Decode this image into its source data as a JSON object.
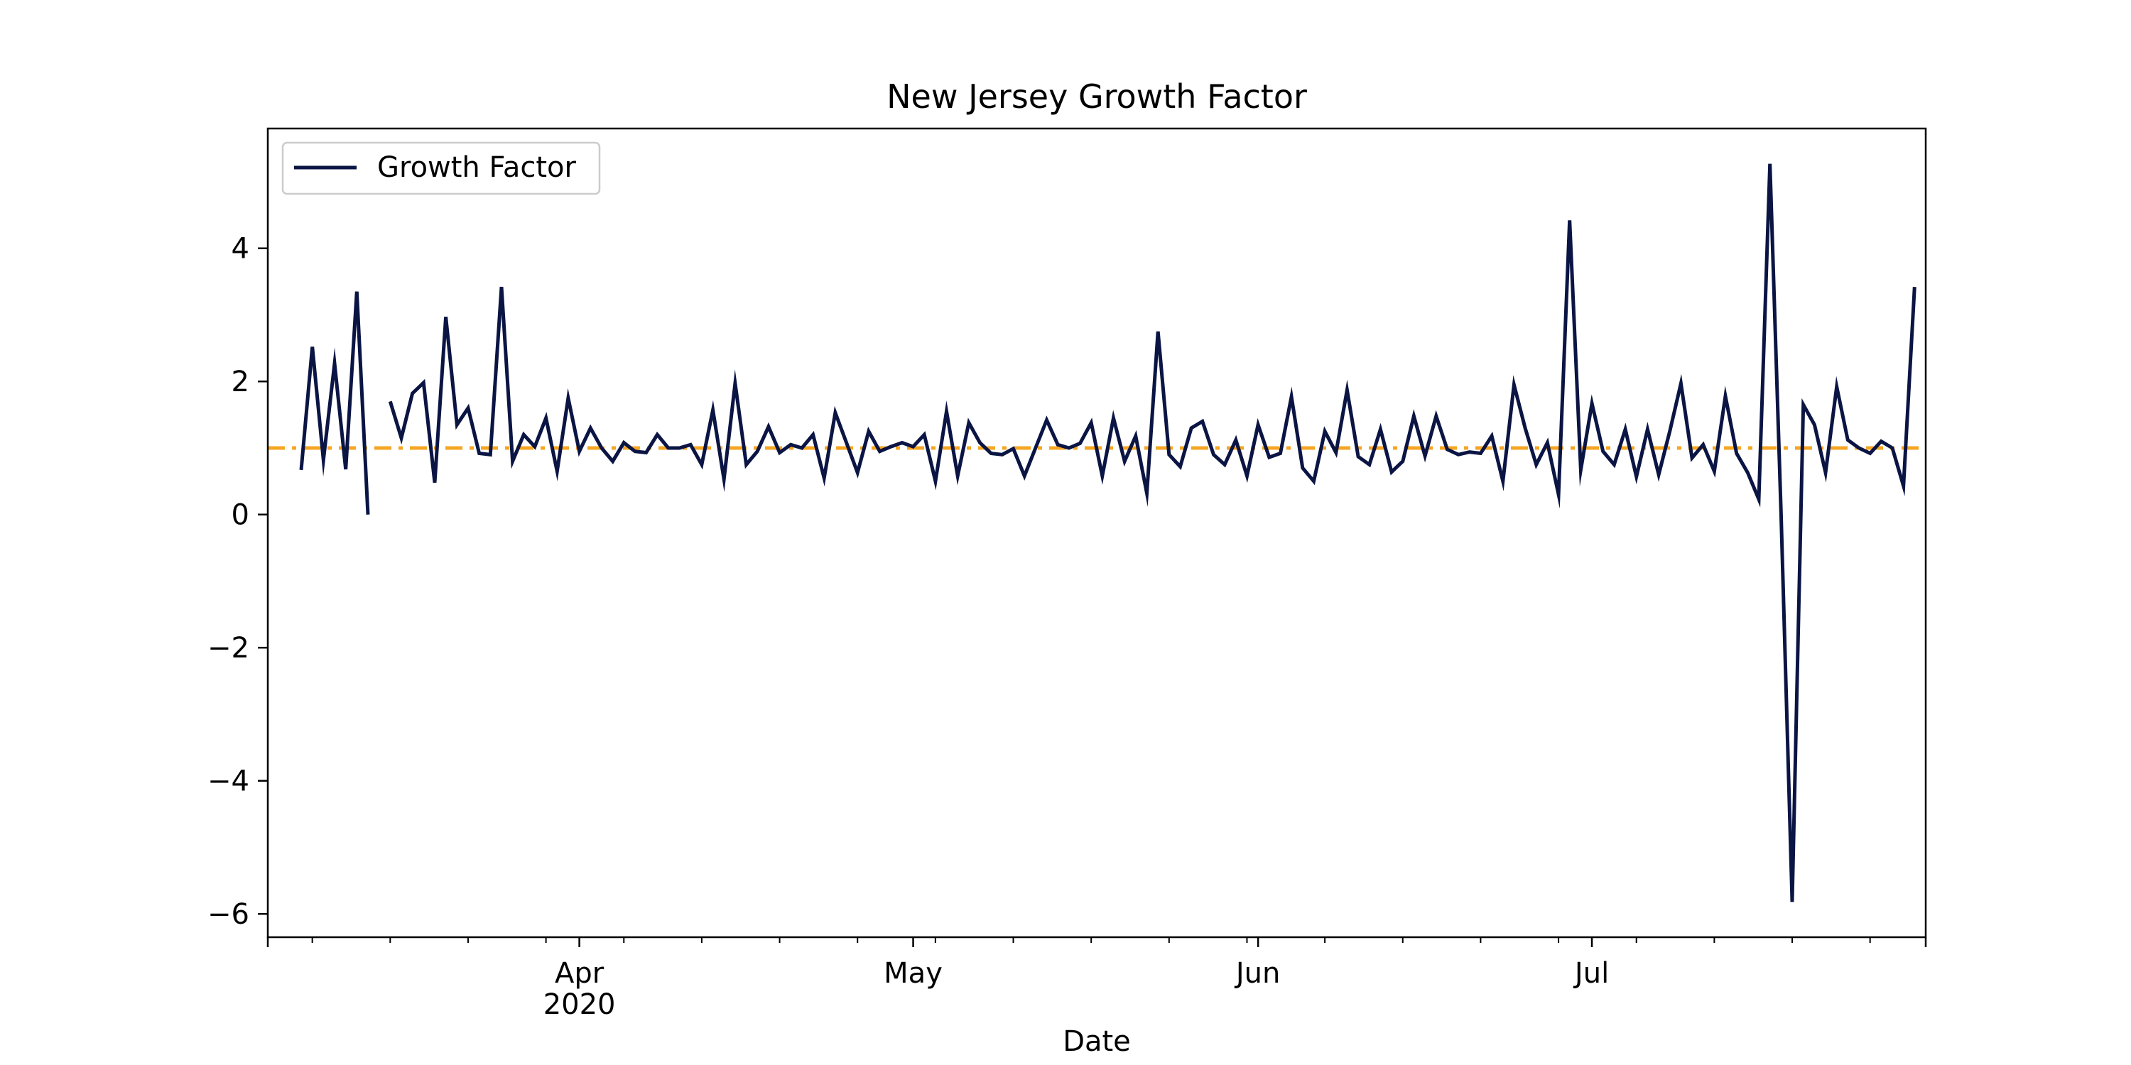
{
  "chart_data": {
    "type": "line",
    "title": "New Jersey Growth Factor",
    "xlabel": "Date",
    "ylabel": "",
    "x_start": "2020-03-04",
    "x_end": "2020-07-31",
    "ylim": [
      -6.35,
      5.8
    ],
    "yticks": [
      4,
      2,
      0,
      -2,
      -4,
      -6
    ],
    "ytick_labels": [
      "4",
      "2",
      "0",
      "−2",
      "−4",
      "−6"
    ],
    "xticks": [
      {
        "date": "2020-04-01",
        "label": "Apr",
        "sublabel": "2020"
      },
      {
        "date": "2020-05-01",
        "label": "May",
        "sublabel": ""
      },
      {
        "date": "2020-06-01",
        "label": "Jun",
        "sublabel": ""
      },
      {
        "date": "2020-07-01",
        "label": "Jul",
        "sublabel": ""
      }
    ],
    "legend": {
      "position": "upper-left",
      "entries": [
        "Growth Factor"
      ]
    },
    "reference_line": {
      "y": 1.0,
      "style": "dash-dot",
      "color": "#f5a623"
    },
    "colors": {
      "series": "#0b1544",
      "reference": "#f5a623"
    },
    "series": [
      {
        "name": "Growth Factor",
        "color": "#0b1544",
        "start_date": "2020-03-07",
        "values": [
          0.67,
          2.52,
          0.82,
          2.27,
          0.68,
          3.35,
          0.0,
          null,
          1.7,
          1.15,
          1.82,
          1.98,
          0.48,
          2.97,
          1.35,
          1.6,
          0.92,
          0.9,
          3.42,
          0.8,
          1.2,
          1.02,
          1.45,
          0.65,
          1.75,
          0.95,
          1.3,
          1.0,
          0.8,
          1.08,
          0.95,
          0.93,
          1.2,
          1.0,
          1.0,
          1.05,
          0.75,
          1.57,
          0.53,
          1.97,
          0.75,
          0.95,
          1.32,
          0.93,
          1.05,
          1.0,
          1.2,
          0.55,
          1.53,
          1.08,
          0.63,
          1.25,
          0.95,
          1.02,
          1.08,
          1.02,
          1.2,
          0.5,
          1.55,
          0.58,
          1.38,
          1.08,
          0.92,
          0.9,
          0.99,
          0.58,
          1.0,
          1.42,
          1.05,
          1.0,
          1.07,
          1.38,
          0.58,
          1.45,
          0.8,
          1.18,
          0.32,
          2.75,
          0.9,
          0.72,
          1.3,
          1.4,
          0.9,
          0.75,
          1.12,
          0.58,
          1.35,
          0.86,
          0.92,
          1.77,
          0.7,
          0.5,
          1.25,
          0.93,
          1.87,
          0.87,
          0.75,
          1.28,
          0.64,
          0.8,
          1.48,
          0.88,
          1.48,
          0.98,
          0.9,
          0.94,
          0.92,
          1.18,
          0.5,
          1.95,
          1.3,
          0.75,
          1.08,
          0.3,
          4.42,
          0.67,
          1.67,
          0.95,
          0.75,
          1.28,
          0.57,
          1.28,
          0.6,
          1.25,
          1.97,
          0.85,
          1.05,
          0.65,
          1.78,
          0.92,
          0.63,
          0.23,
          5.27,
          0.0,
          -5.82,
          1.65,
          1.35,
          0.63,
          1.92,
          1.12,
          1.0,
          0.92,
          1.1,
          1.0,
          0.43,
          3.42
        ]
      }
    ]
  }
}
